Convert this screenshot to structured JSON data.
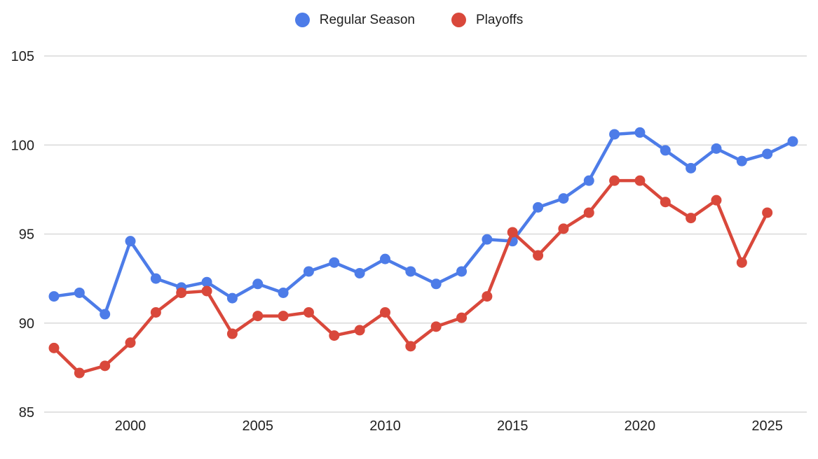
{
  "legend": {
    "items": [
      {
        "label": "Regular Season",
        "color": "#4D7CE8"
      },
      {
        "label": "Playoffs",
        "color": "#D9483B"
      }
    ]
  },
  "colors": {
    "regular_season": "#4D7CE8",
    "playoffs": "#D9483B",
    "gridline": "#D9D9D9",
    "axis_text": "#212121",
    "background": "#FFFFFF"
  },
  "chart_data": {
    "type": "line",
    "title": "",
    "xlabel": "",
    "ylabel": "",
    "grid": "horizontal",
    "legend_position": "top",
    "marker": "circle",
    "ylim": [
      85,
      105
    ],
    "y_ticks": [
      85,
      90,
      95,
      100,
      105
    ],
    "x_ticks": [
      2000,
      2005,
      2010,
      2015,
      2020,
      2025
    ],
    "x": [
      1997,
      1998,
      1999,
      2000,
      2001,
      2002,
      2003,
      2004,
      2005,
      2006,
      2007,
      2008,
      2009,
      2010,
      2011,
      2012,
      2013,
      2014,
      2015,
      2016,
      2017,
      2018,
      2019,
      2020,
      2021,
      2022,
      2023,
      2024,
      2025,
      2026
    ],
    "series": [
      {
        "name": "Regular Season",
        "color": "#4D7CE8",
        "values": [
          91.5,
          91.7,
          90.5,
          94.6,
          92.5,
          92.0,
          92.3,
          91.4,
          92.2,
          91.7,
          92.9,
          93.4,
          92.8,
          93.6,
          92.9,
          92.2,
          92.9,
          94.7,
          94.6,
          96.5,
          97.0,
          98.0,
          100.6,
          100.7,
          99.7,
          98.7,
          99.8,
          99.1,
          99.5,
          100.2
        ]
      },
      {
        "name": "Playoffs",
        "color": "#D9483B",
        "values": [
          88.6,
          87.2,
          87.6,
          88.9,
          90.6,
          91.7,
          91.8,
          89.4,
          90.4,
          90.4,
          90.6,
          89.3,
          89.6,
          90.6,
          88.7,
          89.8,
          90.3,
          91.5,
          95.1,
          93.8,
          95.3,
          96.2,
          98.0,
          98.0,
          96.8,
          95.9,
          96.9,
          93.4,
          96.2
        ]
      }
    ]
  }
}
